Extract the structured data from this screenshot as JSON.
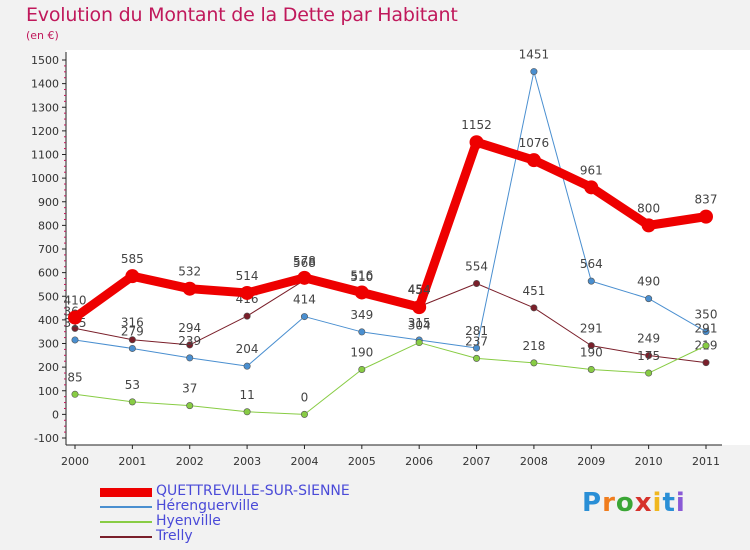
{
  "header": {
    "title": "Evolution du Montant de la Dette par Habitant",
    "subtitle": "(en €)"
  },
  "logo": {
    "letters": [
      "P",
      "r",
      "o",
      "x",
      "i",
      "t",
      "i"
    ],
    "colors": [
      "#2a8fd6",
      "#f07d1e",
      "#3aa635",
      "#d6322b",
      "#f0b71e",
      "#2a8fd6",
      "#8a5ad6"
    ]
  },
  "chart_data": {
    "type": "line",
    "title": "Evolution du Montant de la Dette par Habitant",
    "subtitle": "(en €)",
    "x": [
      "2000",
      "2001",
      "2002",
      "2003",
      "2004",
      "2005",
      "2006",
      "2007",
      "2008",
      "2009",
      "2010",
      "2011"
    ],
    "ylim": [
      -100,
      1500
    ],
    "yticks": [
      -100,
      0,
      100,
      200,
      300,
      400,
      500,
      600,
      700,
      800,
      900,
      1000,
      1100,
      1200,
      1300,
      1400,
      1500
    ],
    "grid": false,
    "legend_position": "bottom-left",
    "series": [
      {
        "name": "Trelly",
        "color": "#7a1f2a",
        "width": 1,
        "values": [
          364,
          316,
          294,
          416,
          568,
          510,
          456,
          554,
          451,
          291,
          249,
          219
        ],
        "labels": [
          "364",
          "316",
          "294",
          "416",
          "568",
          "510",
          "456",
          "554",
          "451",
          "291",
          "249",
          "219"
        ]
      },
      {
        "name": "Hérenguerville",
        "color": "#4a8fd0",
        "width": 1,
        "values": [
          315,
          279,
          239,
          204,
          414,
          349,
          315,
          281,
          1451,
          564,
          490,
          350
        ],
        "labels": [
          "315",
          "279",
          "239",
          "204",
          "414",
          "349",
          "315",
          "281",
          "1451",
          "564",
          "490",
          "350"
        ]
      },
      {
        "name": "Hyenville",
        "color": "#88cc44",
        "width": 1,
        "values": [
          85,
          53,
          37,
          11,
          0,
          190,
          304,
          237,
          218,
          190,
          175,
          291
        ],
        "labels": [
          "85",
          "53",
          "37",
          "11",
          "0",
          "190",
          "304",
          "237",
          "218",
          "190",
          "175",
          "291"
        ]
      },
      {
        "name": "QUETTREVILLE-SUR-SIENNE",
        "color": "#ee0000",
        "width": 9,
        "values": [
          410,
          585,
          532,
          514,
          578,
          516,
          454,
          1152,
          1076,
          961,
          800,
          837
        ],
        "labels": [
          "410",
          "585",
          "532",
          "514",
          "578",
          "516",
          "454",
          "1152",
          "1076",
          "961",
          "800",
          "837"
        ]
      }
    ],
    "legend_order": [
      "QUETTREVILLE-SUR-SIENNE",
      "Hérenguerville",
      "Hyenville",
      "Trelly"
    ]
  }
}
